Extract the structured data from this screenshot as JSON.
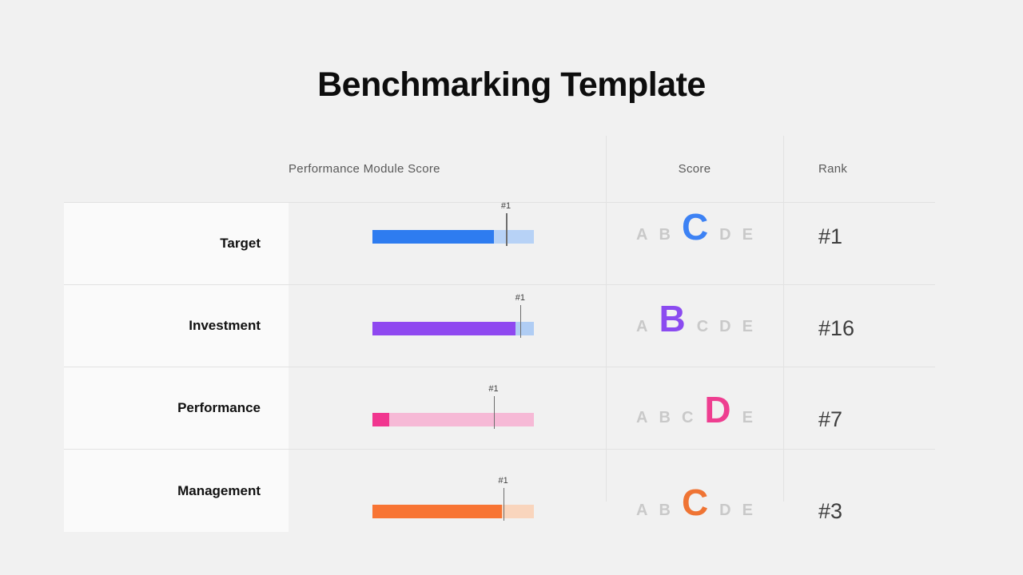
{
  "title": "Benchmarking Template",
  "header": {
    "col_module": "Performance Module Score",
    "col_score": "Score",
    "col_rank": "Rank"
  },
  "marker_label": "#1",
  "grade_scale": [
    "A",
    "B",
    "C",
    "D",
    "E"
  ],
  "rows": [
    {
      "label": "Target",
      "fill_pct": 75,
      "marker_pct": 82.7,
      "bar_color": "#2e7cf0",
      "track_color": "#b7d2f6",
      "grade": "C",
      "grade_color": "#3d82f4",
      "rank": "#1"
    },
    {
      "label": "Investment",
      "fill_pct": 88.5,
      "marker_pct": 91.5,
      "bar_color": "#8f48f0",
      "track_color": "#b0cdf4",
      "grade": "B",
      "grade_color": "#8b4bf0",
      "rank": "#16"
    },
    {
      "label": "Performance",
      "fill_pct": 10.5,
      "marker_pct": 75,
      "bar_color": "#f1368f",
      "track_color": "#f6b9d6",
      "grade": "D",
      "grade_color": "#ee3e90",
      "rank": "#7"
    },
    {
      "label": "Management",
      "fill_pct": 80,
      "marker_pct": 81,
      "bar_color": "#f87433",
      "track_color": "#f9d5bd",
      "grade": "C",
      "grade_color": "#ef7434",
      "rank": "#3"
    }
  ],
  "colors": {
    "background": "#f1f1f1",
    "row_label_bg": "#fafafa",
    "grid": "#e2e2e2",
    "inactive_grade": "#c9c9c9",
    "title": "#0d0d0d",
    "header_text": "#5a5a5a",
    "rank_text": "#3d3d3d",
    "marker_line": "#6e6e6e"
  },
  "chart_data": {
    "type": "table",
    "title": "Benchmarking Template",
    "columns": [
      "Performance Module Score",
      "Score",
      "Rank"
    ],
    "categories": [
      "Target",
      "Investment",
      "Performance",
      "Management"
    ],
    "bar_fill_percent": [
      75,
      88.5,
      10.5,
      80
    ],
    "benchmark_marker_percent": [
      82.7,
      91.5,
      75,
      81
    ],
    "marker_label": "#1",
    "grade_scale": [
      "A",
      "B",
      "C",
      "D",
      "E"
    ],
    "scores": [
      "C",
      "B",
      "D",
      "C"
    ],
    "ranks": [
      "#1",
      "#16",
      "#7",
      "#3"
    ],
    "bar_colors": [
      "#2e7cf0",
      "#8f48f0",
      "#f1368f",
      "#f87433"
    ],
    "legend": "off",
    "grid": "light horizontal + vertical column dividers"
  }
}
